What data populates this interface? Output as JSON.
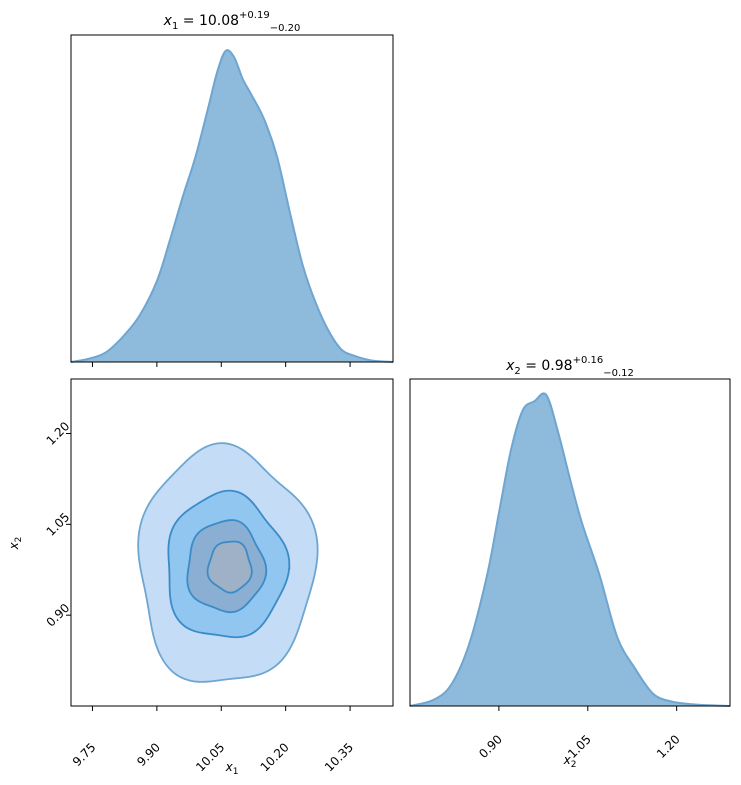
{
  "chart_data": [
    {
      "type": "area",
      "panel": "marginal-x1",
      "title": {
        "var": "x",
        "sub": "1",
        "eq": " = 10.08",
        "sup": "+0.19",
        "inf": "−0.20"
      },
      "xlim": [
        9.7,
        10.45
      ],
      "x": [
        9.7,
        9.74,
        9.78,
        9.82,
        9.86,
        9.9,
        9.93,
        9.96,
        9.99,
        10.02,
        10.04,
        10.06,
        10.08,
        10.1,
        10.12,
        10.15,
        10.18,
        10.21,
        10.24,
        10.27,
        10.3,
        10.33,
        10.36,
        10.4,
        10.45
      ],
      "y": [
        0.0,
        0.01,
        0.03,
        0.08,
        0.15,
        0.26,
        0.39,
        0.53,
        0.66,
        0.82,
        0.93,
        1.0,
        0.98,
        0.91,
        0.86,
        0.78,
        0.66,
        0.48,
        0.31,
        0.19,
        0.1,
        0.04,
        0.02,
        0.005,
        0.0
      ],
      "color": "#6ea6d1"
    },
    {
      "type": "contour",
      "panel": "joint-x1-x2",
      "xlabel": {
        "var": "x",
        "sub": "1"
      },
      "ylabel": {
        "var": "x",
        "sub": "2"
      },
      "xlim": [
        9.7,
        10.45
      ],
      "ylim": [
        0.75,
        1.29
      ],
      "xticks": [
        "9.75",
        "9.90",
        "10.05",
        "10.20",
        "10.35"
      ],
      "xtick_values": [
        9.75,
        9.9,
        10.05,
        10.2,
        10.35
      ],
      "yticks": [
        "0.90",
        "1.05",
        "1.20"
      ],
      "ytick_values": [
        0.9,
        1.05,
        1.2
      ],
      "center": [
        10.06,
        0.98
      ],
      "levels": [
        {
          "rx": 0.205,
          "ry": 0.195,
          "fill": "#c2daf7",
          "stroke": "#6ea6d1"
        },
        {
          "rx": 0.14,
          "ry": 0.12,
          "fill": "#8dc4ee",
          "stroke": "#3a8bc7"
        },
        {
          "rx": 0.09,
          "ry": 0.075,
          "fill": "#8aaed0",
          "stroke": "#3a8bc7"
        },
        {
          "rx": 0.05,
          "ry": 0.042,
          "fill": "#9fb1c5",
          "stroke": "#3a8bc7"
        }
      ]
    },
    {
      "type": "area",
      "panel": "marginal-x2",
      "title": {
        "var": "x",
        "sub": "2",
        "eq": " = 0.98",
        "sup": "+0.16",
        "inf": "−0.12"
      },
      "xlabel": {
        "var": "x",
        "sub": "2"
      },
      "xlim": [
        0.75,
        1.29
      ],
      "xticks": [
        "0.90",
        "1.05",
        "1.20"
      ],
      "xtick_values": [
        0.9,
        1.05,
        1.2
      ],
      "x": [
        0.75,
        0.79,
        0.82,
        0.85,
        0.88,
        0.9,
        0.92,
        0.94,
        0.96,
        0.98,
        1.0,
        1.02,
        1.04,
        1.07,
        1.1,
        1.13,
        1.16,
        1.19,
        1.23,
        1.29
      ],
      "y": [
        0.0,
        0.02,
        0.07,
        0.2,
        0.42,
        0.62,
        0.82,
        0.95,
        0.98,
        1.0,
        0.88,
        0.73,
        0.59,
        0.42,
        0.22,
        0.12,
        0.04,
        0.015,
        0.005,
        0.0
      ],
      "color": "#6ea6d1"
    }
  ]
}
